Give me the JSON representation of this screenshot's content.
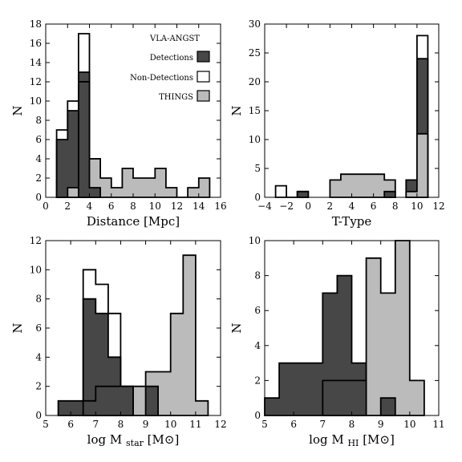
{
  "colors": {
    "detections": "#474747",
    "non_detections": "#ffffff",
    "things": "#bbbbbb",
    "outline": "#000000"
  },
  "legend": {
    "title": "VLA-ANGST",
    "placement": "upper-right of top-left panel",
    "entries": [
      {
        "label": "Detections",
        "color_key": "detections"
      },
      {
        "label": "Non-Detections",
        "color_key": "non_detections"
      },
      {
        "label": "THINGS",
        "color_key": "things"
      }
    ]
  },
  "chart_data": [
    {
      "id": "distance",
      "type": "bar",
      "histogram": true,
      "xlabel": "Distance [Mpc]",
      "ylabel": "N",
      "xlim": [
        0,
        16
      ],
      "ylim": [
        0,
        18
      ],
      "xticks": [
        0,
        2,
        4,
        6,
        8,
        10,
        12,
        14,
        16
      ],
      "yticks": [
        0,
        2,
        4,
        6,
        8,
        10,
        12,
        14,
        16,
        18
      ],
      "series": [
        {
          "name": "Non-Detections",
          "color_key": "non_detections",
          "bins": [
            1,
            2,
            3,
            4,
            5
          ],
          "counts": [
            7,
            10,
            17,
            4
          ]
        },
        {
          "name": "Detections",
          "color_key": "detections",
          "bins": [
            1,
            2,
            3,
            4
          ],
          "counts": [
            6,
            9,
            13
          ]
        },
        {
          "name": "THINGS",
          "color_key": "things",
          "bins": [
            2,
            3,
            4,
            5,
            6,
            7,
            8,
            9,
            10,
            11,
            12,
            13,
            14,
            15
          ],
          "counts": [
            1,
            12,
            4,
            2,
            1,
            3,
            2,
            2,
            3,
            1,
            0,
            1,
            2
          ]
        },
        {
          "name": "Detections",
          "color_key": "detections",
          "bins": [
            3,
            4,
            5
          ],
          "counts": [
            12,
            1
          ]
        }
      ]
    },
    {
      "id": "ttype",
      "type": "bar",
      "histogram": true,
      "xlabel": "T-Type",
      "ylabel": "N",
      "xlim": [
        -4,
        12
      ],
      "ylim": [
        0,
        30
      ],
      "xticks": [
        -4,
        -2,
        0,
        2,
        4,
        6,
        8,
        10,
        12
      ],
      "yticks": [
        0,
        5,
        10,
        15,
        20,
        25,
        30
      ],
      "series": [
        {
          "name": "Non-Detections",
          "color_key": "non_detections",
          "bins": [
            -3,
            -2,
            -1,
            0
          ],
          "counts": [
            2,
            0,
            1
          ]
        },
        {
          "name": "Non-Detections",
          "color_key": "non_detections",
          "bins": [
            10,
            11
          ],
          "counts": [
            28
          ]
        },
        {
          "name": "Detections",
          "color_key": "detections",
          "bins": [
            -1,
            0
          ],
          "counts": [
            1
          ]
        },
        {
          "name": "THINGS",
          "color_key": "things",
          "bins": [
            2,
            3,
            4,
            5,
            6,
            7,
            8
          ],
          "counts": [
            3,
            4,
            4,
            4,
            4,
            3
          ]
        },
        {
          "name": "Detections",
          "color_key": "detections",
          "bins": [
            7,
            8
          ],
          "counts": [
            1
          ]
        },
        {
          "name": "Detections",
          "color_key": "detections",
          "bins": [
            9,
            10,
            11
          ],
          "counts": [
            3,
            24
          ]
        },
        {
          "name": "THINGS",
          "color_key": "things",
          "bins": [
            9,
            10,
            11
          ],
          "counts": [
            1,
            11
          ]
        }
      ]
    },
    {
      "id": "mstar",
      "type": "bar",
      "histogram": true,
      "xlabel": "log M",
      "xlabel_sub": "star",
      "xlabel_unit_pre": " [M",
      "xlabel_unit_post": "]",
      "ylabel": "N",
      "xlim": [
        5,
        12
      ],
      "ylim": [
        0,
        12
      ],
      "xticks": [
        5,
        6,
        7,
        8,
        9,
        10,
        11,
        12
      ],
      "yticks": [
        0,
        2,
        4,
        6,
        8,
        10,
        12
      ],
      "series": [
        {
          "name": "Non-Detections",
          "color_key": "non_detections",
          "bins": [
            6.5,
            7.0,
            7.5,
            8.0
          ],
          "counts": [
            10,
            9,
            7
          ]
        },
        {
          "name": "Detections",
          "color_key": "detections",
          "bins": [
            5.5,
            6.0,
            6.5,
            7.0,
            7.5,
            8.0,
            8.5
          ],
          "counts": [
            1,
            1,
            8,
            7,
            4,
            2
          ]
        },
        {
          "name": "THINGS",
          "color_key": "things",
          "bins": [
            8.5,
            9.0,
            9.5,
            10.0,
            10.5,
            11.0,
            11.5
          ],
          "counts": [
            2,
            3,
            3,
            7,
            11,
            1
          ]
        },
        {
          "name": "Detections",
          "color_key": "detections",
          "bins": [
            6.5,
            7.0,
            7.5,
            8.0,
            8.5
          ],
          "counts": [
            1,
            2,
            2,
            2
          ]
        },
        {
          "name": "Detections",
          "color_key": "detections",
          "bins": [
            9.0,
            9.5
          ],
          "counts": [
            2
          ]
        }
      ]
    },
    {
      "id": "mhi",
      "type": "bar",
      "histogram": true,
      "xlabel": "log M",
      "xlabel_sub": "HI",
      "xlabel_unit_pre": " [M",
      "xlabel_unit_post": "]",
      "ylabel": "N",
      "xlim": [
        5,
        11
      ],
      "ylim": [
        0,
        10
      ],
      "xticks": [
        5,
        6,
        7,
        8,
        9,
        10,
        11
      ],
      "yticks": [
        0,
        2,
        4,
        6,
        8,
        10
      ],
      "series": [
        {
          "name": "Detections",
          "color_key": "detections",
          "bins": [
            5.0,
            5.5,
            6.0,
            6.5,
            7.0,
            7.5,
            8.0,
            8.5
          ],
          "counts": [
            1,
            3,
            3,
            3,
            7,
            8,
            3
          ]
        },
        {
          "name": "THINGS",
          "color_key": "things",
          "bins": [
            8.5,
            9.0,
            9.5,
            10.0,
            10.5
          ],
          "counts": [
            9,
            7,
            10,
            2
          ]
        },
        {
          "name": "Detections",
          "color_key": "detections",
          "bins": [
            7.0,
            8.5
          ],
          "counts": [
            2
          ]
        },
        {
          "name": "Detections",
          "color_key": "detections",
          "bins": [
            9.0,
            9.5
          ],
          "counts": [
            1
          ]
        }
      ]
    }
  ]
}
